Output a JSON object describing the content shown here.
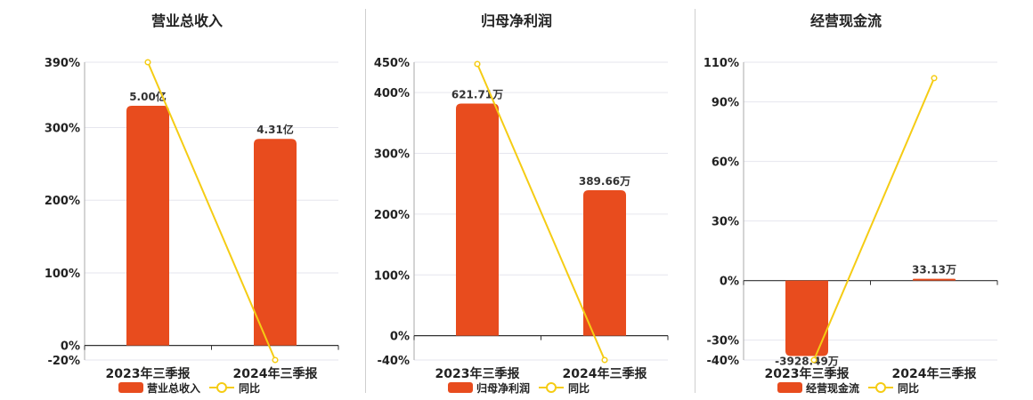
{
  "colors": {
    "bar": "#E84C1E",
    "line": "#F5CC14",
    "grid": "#e6e6ee",
    "axis": "#333333"
  },
  "legend": {
    "line_label": "同比"
  },
  "chart_data": [
    {
      "type": "bar",
      "title": "营业总收入",
      "categories": [
        "2023年三季报",
        "2024年三季报"
      ],
      "series": [
        {
          "name": "营业总收入",
          "type": "bar",
          "values": [
            5.0,
            4.31
          ],
          "labels": [
            "5.00亿",
            "4.31亿"
          ],
          "ylim": [
            0,
            5.0
          ]
        },
        {
          "name": "同比",
          "type": "line",
          "values": [
            390,
            -20
          ]
        }
      ],
      "yticks": [
        "390%",
        "300%",
        "200%",
        "100%",
        "0%",
        "-20%"
      ],
      "ylim": [
        -20,
        390
      ]
    },
    {
      "type": "bar",
      "title": "归母净利润",
      "categories": [
        "2023年三季报",
        "2024年三季报"
      ],
      "series": [
        {
          "name": "归母净利润",
          "type": "bar",
          "values": [
            621.71,
            389.66
          ],
          "labels": [
            "621.71万",
            "389.66万"
          ],
          "ylim": [
            0,
            621.71
          ]
        },
        {
          "name": "同比",
          "type": "line",
          "values": [
            450,
            -40
          ]
        }
      ],
      "yticks": [
        "450%",
        "400%",
        "300%",
        "200%",
        "100%",
        "0%",
        "-40%"
      ],
      "ylim": [
        -40,
        450
      ]
    },
    {
      "type": "bar",
      "title": "经营现金流",
      "categories": [
        "2023年三季报",
        "2024年三季报"
      ],
      "series": [
        {
          "name": "经营现金流",
          "type": "bar",
          "values": [
            -3928.49,
            33.13
          ],
          "labels": [
            "-3928.49万",
            "33.13万"
          ],
          "ylim": [
            -3928.49,
            0
          ]
        },
        {
          "name": "同比",
          "type": "line",
          "values": [
            -40,
            102
          ]
        }
      ],
      "yticks": [
        "110%",
        "90%",
        "60%",
        "30%",
        "0%",
        "-30%",
        "-40%"
      ],
      "ylim": [
        -40,
        110
      ]
    }
  ]
}
